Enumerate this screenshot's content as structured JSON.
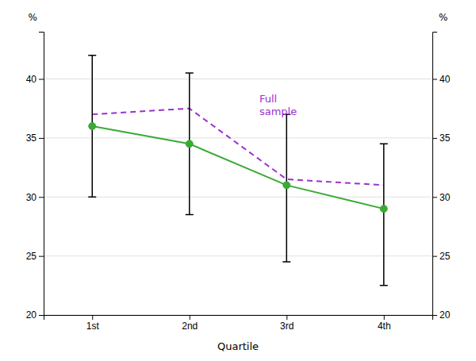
{
  "chart_data": {
    "type": "line",
    "categories": [
      "1st",
      "2nd",
      "3rd",
      "4th"
    ],
    "series": [
      {
        "values": [
          36.0,
          34.5,
          31.0,
          29.0
        ],
        "lower": [
          30.0,
          28.5,
          24.5,
          22.5
        ],
        "upper": [
          42.0,
          40.5,
          37.0,
          34.5
        ],
        "color": "#3aaa35",
        "marker": "circle",
        "line_style": "solid"
      },
      {
        "values": [
          37.0,
          37.5,
          31.5,
          31.0
        ],
        "color": "#9b30d0",
        "line_style": "dashed"
      }
    ],
    "xlabel": "Quartile",
    "ylabel": "%",
    "y2label": "%",
    "ylim": [
      20,
      44
    ],
    "yticks": [
      20,
      25,
      30,
      35,
      40
    ],
    "y2lim": [
      20,
      44
    ],
    "y2ticks": [
      20,
      25,
      30,
      35,
      40
    ],
    "grid": true,
    "annotations": [
      {
        "text": "Full\nsample",
        "x": 1.72,
        "y": 38.8,
        "color": "#9b30d0"
      }
    ]
  }
}
